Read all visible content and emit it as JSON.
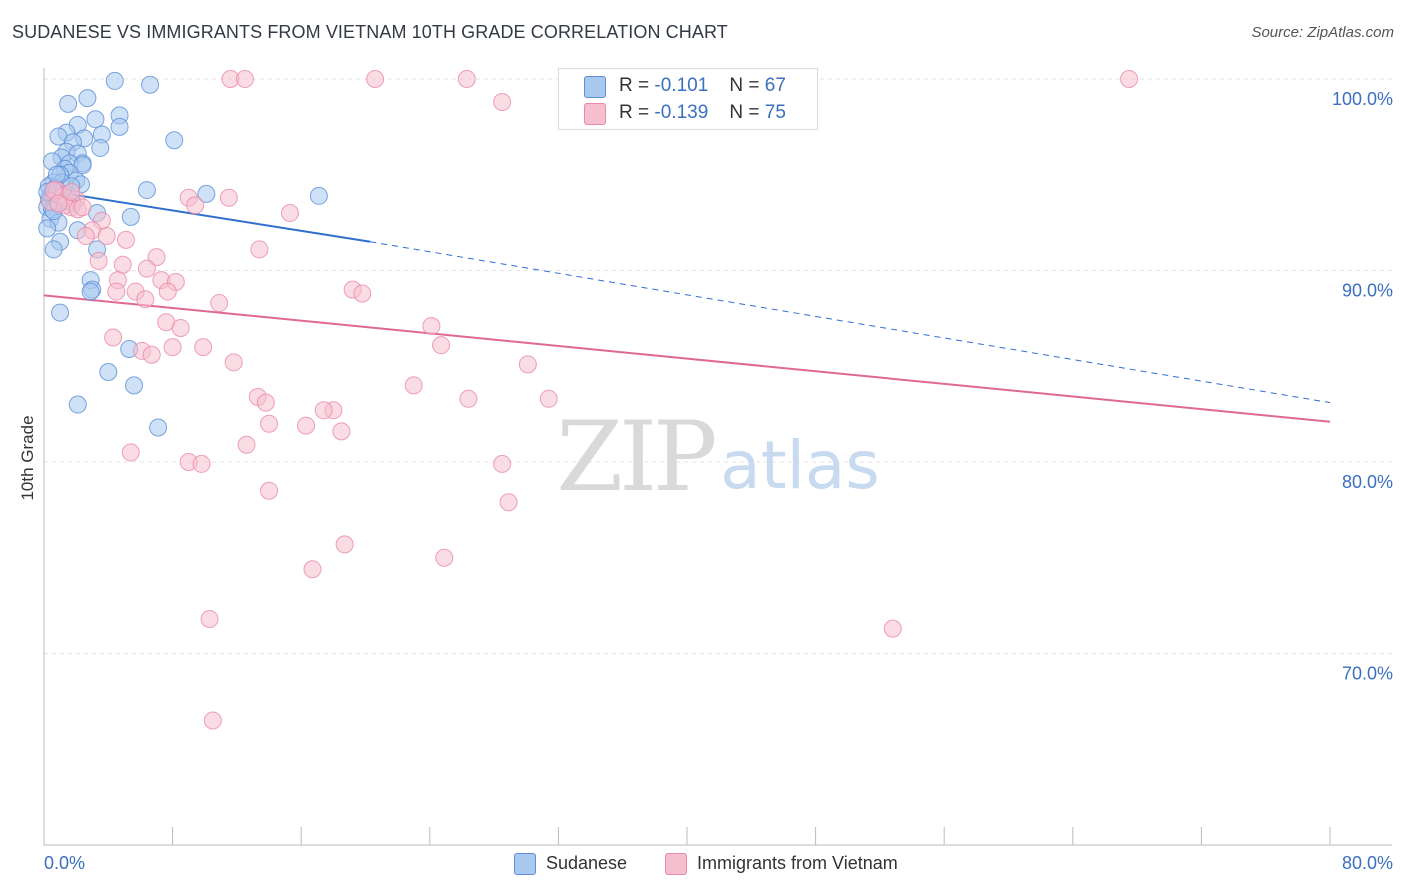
{
  "title": "SUDANESE VS IMMIGRANTS FROM VIETNAM 10TH GRADE CORRELATION CHART",
  "source": "Source: ZipAtlas.com",
  "watermark": {
    "zip": "ZIP",
    "atlas": "atlas"
  },
  "legend": {
    "rows": [
      {
        "r_label": "R =",
        "r_value": "-0.101",
        "n_label": "N =",
        "n_value": "67",
        "color": "#a8c8ee",
        "border": "#5b8fd6"
      },
      {
        "r_label": "R =",
        "r_value": "-0.139",
        "n_label": "N =",
        "n_value": "75",
        "color": "#f6bfd0",
        "border": "#e88aa8"
      }
    ]
  },
  "bottom_legend": [
    {
      "label": "Sudanese",
      "color": "#a8c8ee"
    },
    {
      "label": "Immigrants from Vietnam",
      "color": "#f6bfd0"
    }
  ],
  "chart_data": {
    "type": "scatter",
    "xlabel": "",
    "ylabel": "10th Grade",
    "xlim": [
      0,
      80
    ],
    "ylim": [
      60,
      100
    ],
    "x_tick_labels": {
      "min": "0.0%",
      "max": "80.0%"
    },
    "y_ticks": [
      {
        "value": 100,
        "label": "100.0%"
      },
      {
        "value": 90,
        "label": "90.0%"
      },
      {
        "value": 80,
        "label": "80.0%"
      },
      {
        "value": 70,
        "label": "70.0%"
      }
    ],
    "grid": true,
    "series": [
      {
        "name": "Sudanese",
        "color": "#5b8fd6",
        "fill": "#a8c8ee",
        "trend": {
          "x0": 0,
          "y0": 94.2,
          "x1": 20.3,
          "y1": 91.5,
          "dash_to_x": 80,
          "dash_to_y": 83.1
        },
        "points": [
          [
            4.4,
            99.9
          ],
          [
            6.6,
            99.7
          ],
          [
            2.7,
            99.0
          ],
          [
            1.5,
            98.7
          ],
          [
            4.7,
            98.1
          ],
          [
            3.2,
            97.9
          ],
          [
            2.1,
            97.6
          ],
          [
            4.7,
            97.5
          ],
          [
            1.4,
            97.2
          ],
          [
            0.9,
            97.0
          ],
          [
            3.6,
            97.1
          ],
          [
            2.5,
            96.9
          ],
          [
            8.1,
            96.8
          ],
          [
            1.8,
            96.7
          ],
          [
            3.5,
            96.4
          ],
          [
            1.4,
            96.2
          ],
          [
            2.1,
            96.1
          ],
          [
            1.1,
            95.9
          ],
          [
            0.5,
            95.7
          ],
          [
            2.4,
            95.6
          ],
          [
            1.6,
            95.6
          ],
          [
            2.4,
            95.5
          ],
          [
            1.3,
            95.3
          ],
          [
            1.6,
            95.1
          ],
          [
            1.0,
            95.0
          ],
          [
            2.0,
            94.7
          ],
          [
            0.6,
            94.6
          ],
          [
            1.1,
            94.6
          ],
          [
            2.3,
            94.5
          ],
          [
            0.3,
            94.4
          ],
          [
            0.7,
            94.3
          ],
          [
            6.4,
            94.2
          ],
          [
            10.1,
            94.0
          ],
          [
            0.8,
            94.0
          ],
          [
            1.3,
            94.0
          ],
          [
            17.1,
            93.9
          ],
          [
            0.4,
            93.9
          ],
          [
            1.1,
            93.8
          ],
          [
            0.3,
            93.7
          ],
          [
            0.6,
            93.7
          ],
          [
            1.2,
            93.6
          ],
          [
            1.8,
            93.5
          ],
          [
            0.2,
            93.3
          ],
          [
            0.5,
            93.2
          ],
          [
            3.3,
            93.0
          ],
          [
            5.4,
            92.8
          ],
          [
            0.4,
            92.7
          ],
          [
            0.9,
            92.5
          ],
          [
            2.1,
            92.1
          ],
          [
            0.2,
            92.2
          ],
          [
            1.0,
            91.5
          ],
          [
            0.6,
            91.1
          ],
          [
            3.3,
            91.1
          ],
          [
            2.9,
            89.5
          ],
          [
            3.0,
            89.0
          ],
          [
            2.9,
            88.9
          ],
          [
            1.0,
            87.8
          ],
          [
            5.3,
            85.9
          ],
          [
            4.0,
            84.7
          ],
          [
            5.6,
            84.0
          ],
          [
            2.1,
            83.0
          ],
          [
            7.1,
            81.8
          ],
          [
            0.2,
            94.1
          ],
          [
            0.8,
            95.0
          ],
          [
            1.7,
            94.4
          ],
          [
            0.6,
            93.1
          ],
          [
            1.4,
            93.8
          ]
        ]
      },
      {
        "name": "Immigrants from Vietnam",
        "color": "#e88aa8",
        "fill": "#f6bfd0",
        "trend": {
          "x0": 0,
          "y0": 88.7,
          "x1": 80,
          "y1": 82.1
        },
        "points": [
          [
            11.6,
            100.0
          ],
          [
            20.6,
            100.0
          ],
          [
            26.3,
            100.0
          ],
          [
            67.5,
            100.0
          ],
          [
            28.5,
            98.8
          ],
          [
            12.5,
            100.0
          ],
          [
            0.8,
            94.2
          ],
          [
            1.2,
            93.9
          ],
          [
            2.0,
            93.7
          ],
          [
            0.4,
            93.6
          ],
          [
            1.7,
            93.3
          ],
          [
            1.3,
            93.4
          ],
          [
            2.1,
            93.2
          ],
          [
            9.0,
            93.8
          ],
          [
            11.5,
            93.8
          ],
          [
            9.4,
            93.4
          ],
          [
            15.3,
            93.0
          ],
          [
            3.6,
            92.6
          ],
          [
            3.0,
            92.1
          ],
          [
            2.6,
            91.8
          ],
          [
            3.9,
            91.8
          ],
          [
            5.1,
            91.6
          ],
          [
            13.4,
            91.1
          ],
          [
            7.0,
            90.7
          ],
          [
            3.4,
            90.5
          ],
          [
            4.9,
            90.3
          ],
          [
            6.4,
            90.1
          ],
          [
            7.3,
            89.5
          ],
          [
            8.2,
            89.4
          ],
          [
            4.6,
            89.5
          ],
          [
            4.5,
            88.9
          ],
          [
            7.7,
            88.9
          ],
          [
            5.7,
            88.9
          ],
          [
            6.3,
            88.5
          ],
          [
            19.2,
            89.0
          ],
          [
            19.8,
            88.8
          ],
          [
            10.9,
            88.3
          ],
          [
            7.6,
            87.3
          ],
          [
            8.5,
            87.0
          ],
          [
            24.1,
            87.1
          ],
          [
            4.3,
            86.5
          ],
          [
            24.7,
            86.1
          ],
          [
            8.0,
            86.0
          ],
          [
            9.9,
            86.0
          ],
          [
            6.1,
            85.8
          ],
          [
            6.7,
            85.6
          ],
          [
            11.8,
            85.2
          ],
          [
            30.1,
            85.1
          ],
          [
            23.0,
            84.0
          ],
          [
            13.3,
            83.4
          ],
          [
            26.4,
            83.3
          ],
          [
            31.4,
            83.3
          ],
          [
            13.8,
            83.1
          ],
          [
            18.0,
            82.7
          ],
          [
            17.4,
            82.7
          ],
          [
            14.0,
            82.0
          ],
          [
            16.3,
            81.9
          ],
          [
            18.5,
            81.6
          ],
          [
            12.6,
            80.9
          ],
          [
            5.4,
            80.5
          ],
          [
            9.0,
            80.0
          ],
          [
            9.8,
            79.9
          ],
          [
            28.5,
            79.9
          ],
          [
            28.9,
            77.9
          ],
          [
            14.0,
            78.5
          ],
          [
            18.7,
            75.7
          ],
          [
            24.9,
            75.0
          ],
          [
            16.7,
            74.4
          ],
          [
            10.3,
            71.8
          ],
          [
            52.8,
            71.3
          ],
          [
            10.5,
            66.5
          ],
          [
            0.6,
            94.2
          ],
          [
            1.7,
            94.1
          ],
          [
            0.9,
            93.5
          ],
          [
            2.4,
            93.3
          ]
        ]
      }
    ]
  }
}
